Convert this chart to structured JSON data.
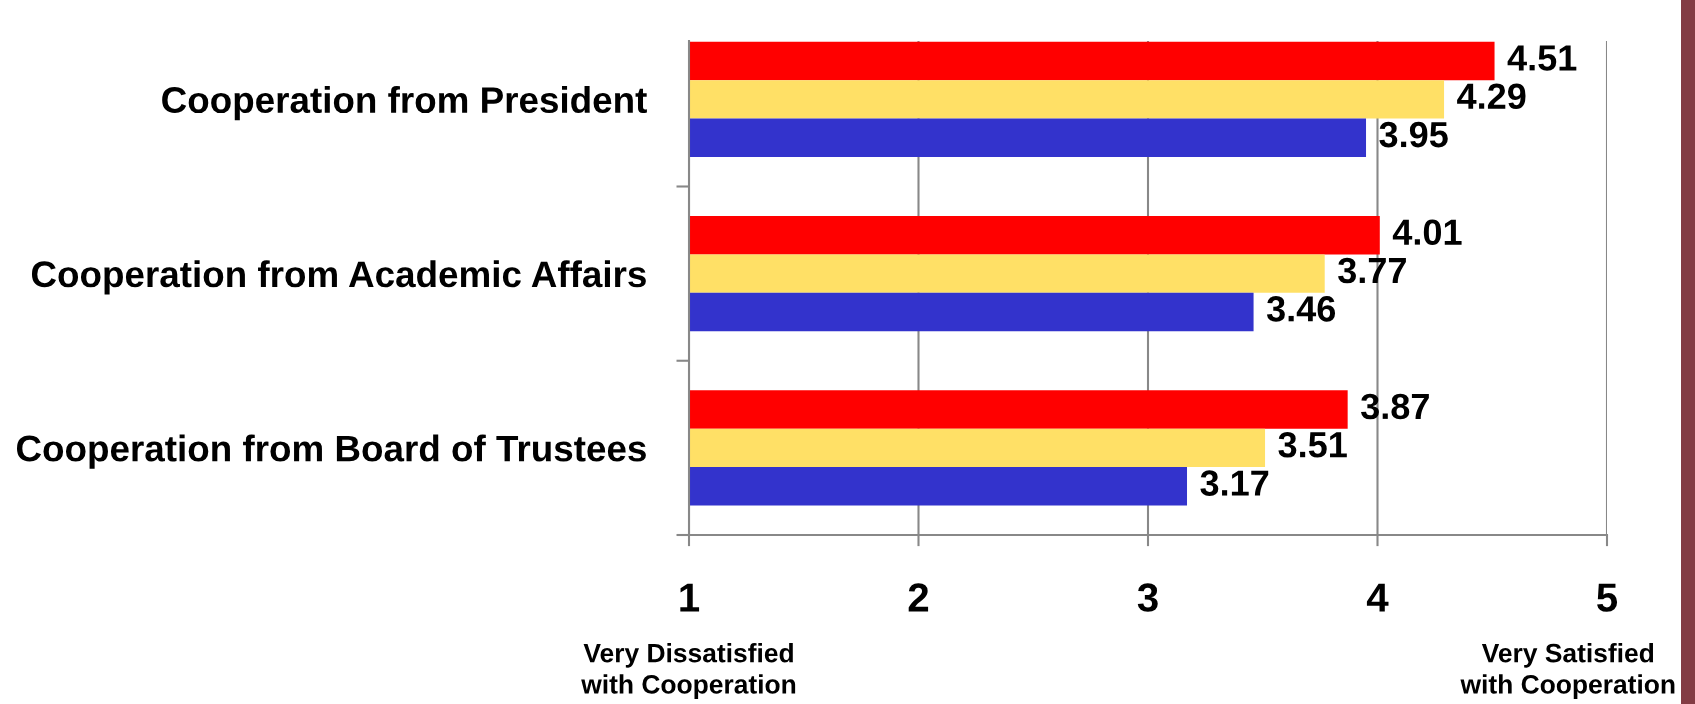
{
  "chart_data": {
    "type": "bar",
    "orientation": "horizontal",
    "categories": [
      "Cooperation from President",
      "Cooperation from Academic Affairs",
      "Cooperation from Board of Trustees"
    ],
    "series": [
      {
        "color": "#ff0000",
        "values": [
          4.51,
          4.01,
          3.87
        ]
      },
      {
        "color": "#ffe066",
        "values": [
          4.29,
          3.77,
          3.51
        ]
      },
      {
        "color": "#3333cc",
        "values": [
          3.95,
          3.46,
          3.17
        ]
      }
    ],
    "xlim": [
      1,
      5
    ],
    "xticks": [
      1,
      2,
      3,
      4,
      5
    ],
    "grid": "x",
    "data_labels": true,
    "annotations": [
      "Very Dissatisfied\nwith Cooperation",
      "Very Satisfied\nwith Cooperation"
    ]
  }
}
